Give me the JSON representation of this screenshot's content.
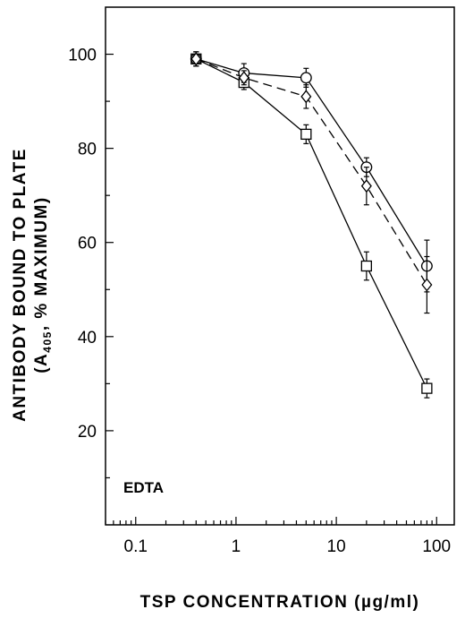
{
  "chart_data": {
    "type": "line",
    "xscale": "log",
    "xlim": [
      0.05,
      150
    ],
    "ylim": [
      0,
      110
    ],
    "x_ticks": [
      0.1,
      1,
      10,
      100
    ],
    "x_tick_labels": [
      "0.1",
      "1",
      "10",
      "100"
    ],
    "y_ticks": [
      20,
      40,
      60,
      80,
      100
    ],
    "y_tick_labels": [
      "20",
      "40",
      "60",
      "80",
      "100"
    ],
    "xlabel": "TSP  CONCENTRATION  (µg/ml)",
    "ylabel_line1": "ANTIBODY  BOUND  TO  PLATE",
    "ylabel_line2_pre": "(A",
    "ylabel_line2_sub": "405",
    "ylabel_line2_post": ",  % MAXIMUM)",
    "annotation": "EDTA",
    "grid": false,
    "series": [
      {
        "marker": "square",
        "dash": "solid",
        "x": [
          0.4,
          1.2,
          5,
          20,
          80
        ],
        "y": [
          99,
          94,
          83,
          55,
          29
        ],
        "err": [
          1.5,
          1.5,
          2,
          3,
          2
        ]
      },
      {
        "marker": "circle",
        "dash": "solid",
        "x": [
          0.4,
          1.2,
          5,
          20,
          80
        ],
        "y": [
          99,
          96,
          95,
          76,
          55
        ],
        "err": [
          1.5,
          2,
          2,
          2,
          5.5
        ]
      },
      {
        "marker": "diamond",
        "dash": "dashed",
        "x": [
          0.4,
          1.2,
          5,
          20,
          80
        ],
        "y": [
          99,
          95,
          91,
          72,
          51
        ],
        "err": [
          1.5,
          1.5,
          2.5,
          4,
          6
        ]
      }
    ]
  }
}
